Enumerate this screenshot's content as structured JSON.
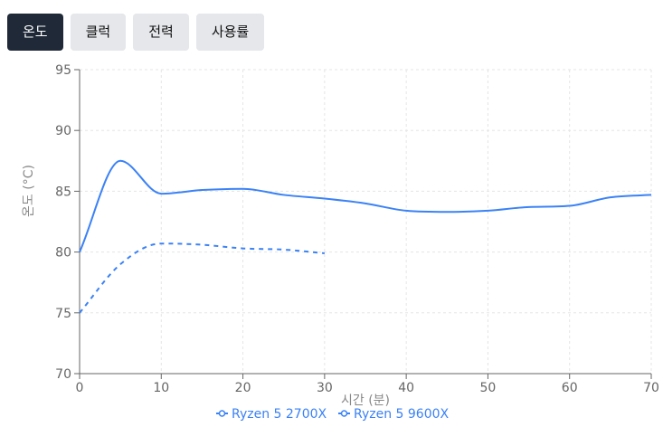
{
  "tabs": [
    {
      "label": "온도",
      "active": true
    },
    {
      "label": "클럭",
      "active": false
    },
    {
      "label": "전력",
      "active": false
    },
    {
      "label": "사용률",
      "active": false
    }
  ],
  "colors": {
    "series": "#3b82f6",
    "tab_active_bg": "#1f2937",
    "tab_bg": "#e5e7eb"
  },
  "chart_data": {
    "type": "line",
    "title": "",
    "xlabel": "시간 (분)",
    "ylabel": "온도 (°C)",
    "xlim": [
      0,
      70
    ],
    "ylim": [
      70,
      95
    ],
    "xticks": [
      0,
      10,
      20,
      30,
      40,
      50,
      60,
      70
    ],
    "yticks": [
      70,
      75,
      80,
      85,
      90,
      95
    ],
    "grid": true,
    "legend_position": "bottom-center",
    "series": [
      {
        "name": "Ryzen 5 2700X",
        "style": "solid",
        "x": [
          0,
          5,
          10,
          15,
          20,
          25,
          30,
          35,
          40,
          45,
          50,
          55,
          60,
          65,
          70
        ],
        "y": [
          80,
          87.5,
          84.8,
          85.1,
          85.2,
          84.7,
          84.4,
          84,
          83.4,
          83.3,
          83.4,
          83.7,
          83.8,
          84.5,
          84.7
        ]
      },
      {
        "name": "Ryzen 5 9600X",
        "style": "dashed",
        "x": [
          0,
          5,
          10,
          15,
          20,
          25,
          30
        ],
        "y": [
          75,
          79,
          80.7,
          80.6,
          80.3,
          80.2,
          79.9
        ]
      }
    ]
  }
}
